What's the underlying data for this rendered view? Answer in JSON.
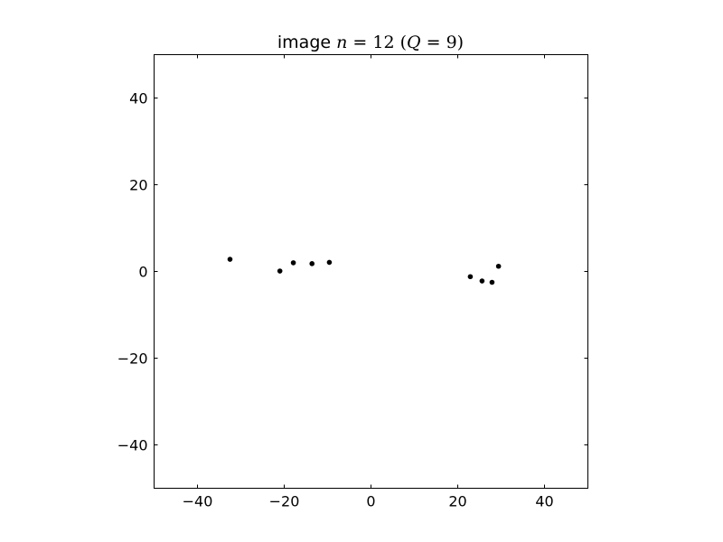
{
  "chart_data": {
    "type": "scatter",
    "title": {
      "prefix": "image ",
      "var1": "n",
      "eq1": " = 12 (",
      "var2": "Q",
      "eq2": " = 9)"
    },
    "xlabel": "",
    "ylabel": "",
    "xlim": [
      -50,
      50
    ],
    "ylim": [
      -50,
      50
    ],
    "xticks": [
      -40,
      -20,
      0,
      20,
      40
    ],
    "yticks": [
      -40,
      -20,
      0,
      20,
      40
    ],
    "xtick_labels": [
      "−40",
      "−20",
      "0",
      "20",
      "40"
    ],
    "ytick_labels": [
      "−40",
      "−20",
      "0",
      "20",
      "40"
    ],
    "grid": false,
    "marker_color": "#000000",
    "points": [
      {
        "x": -32.5,
        "y": 2.8
      },
      {
        "x": -21.0,
        "y": 0.1
      },
      {
        "x": -17.9,
        "y": 2.0
      },
      {
        "x": -13.6,
        "y": 1.8
      },
      {
        "x": -9.6,
        "y": 2.1
      },
      {
        "x": 22.9,
        "y": -1.2
      },
      {
        "x": 25.6,
        "y": -2.2
      },
      {
        "x": 27.9,
        "y": -2.5
      },
      {
        "x": 29.4,
        "y": 1.2
      }
    ]
  }
}
